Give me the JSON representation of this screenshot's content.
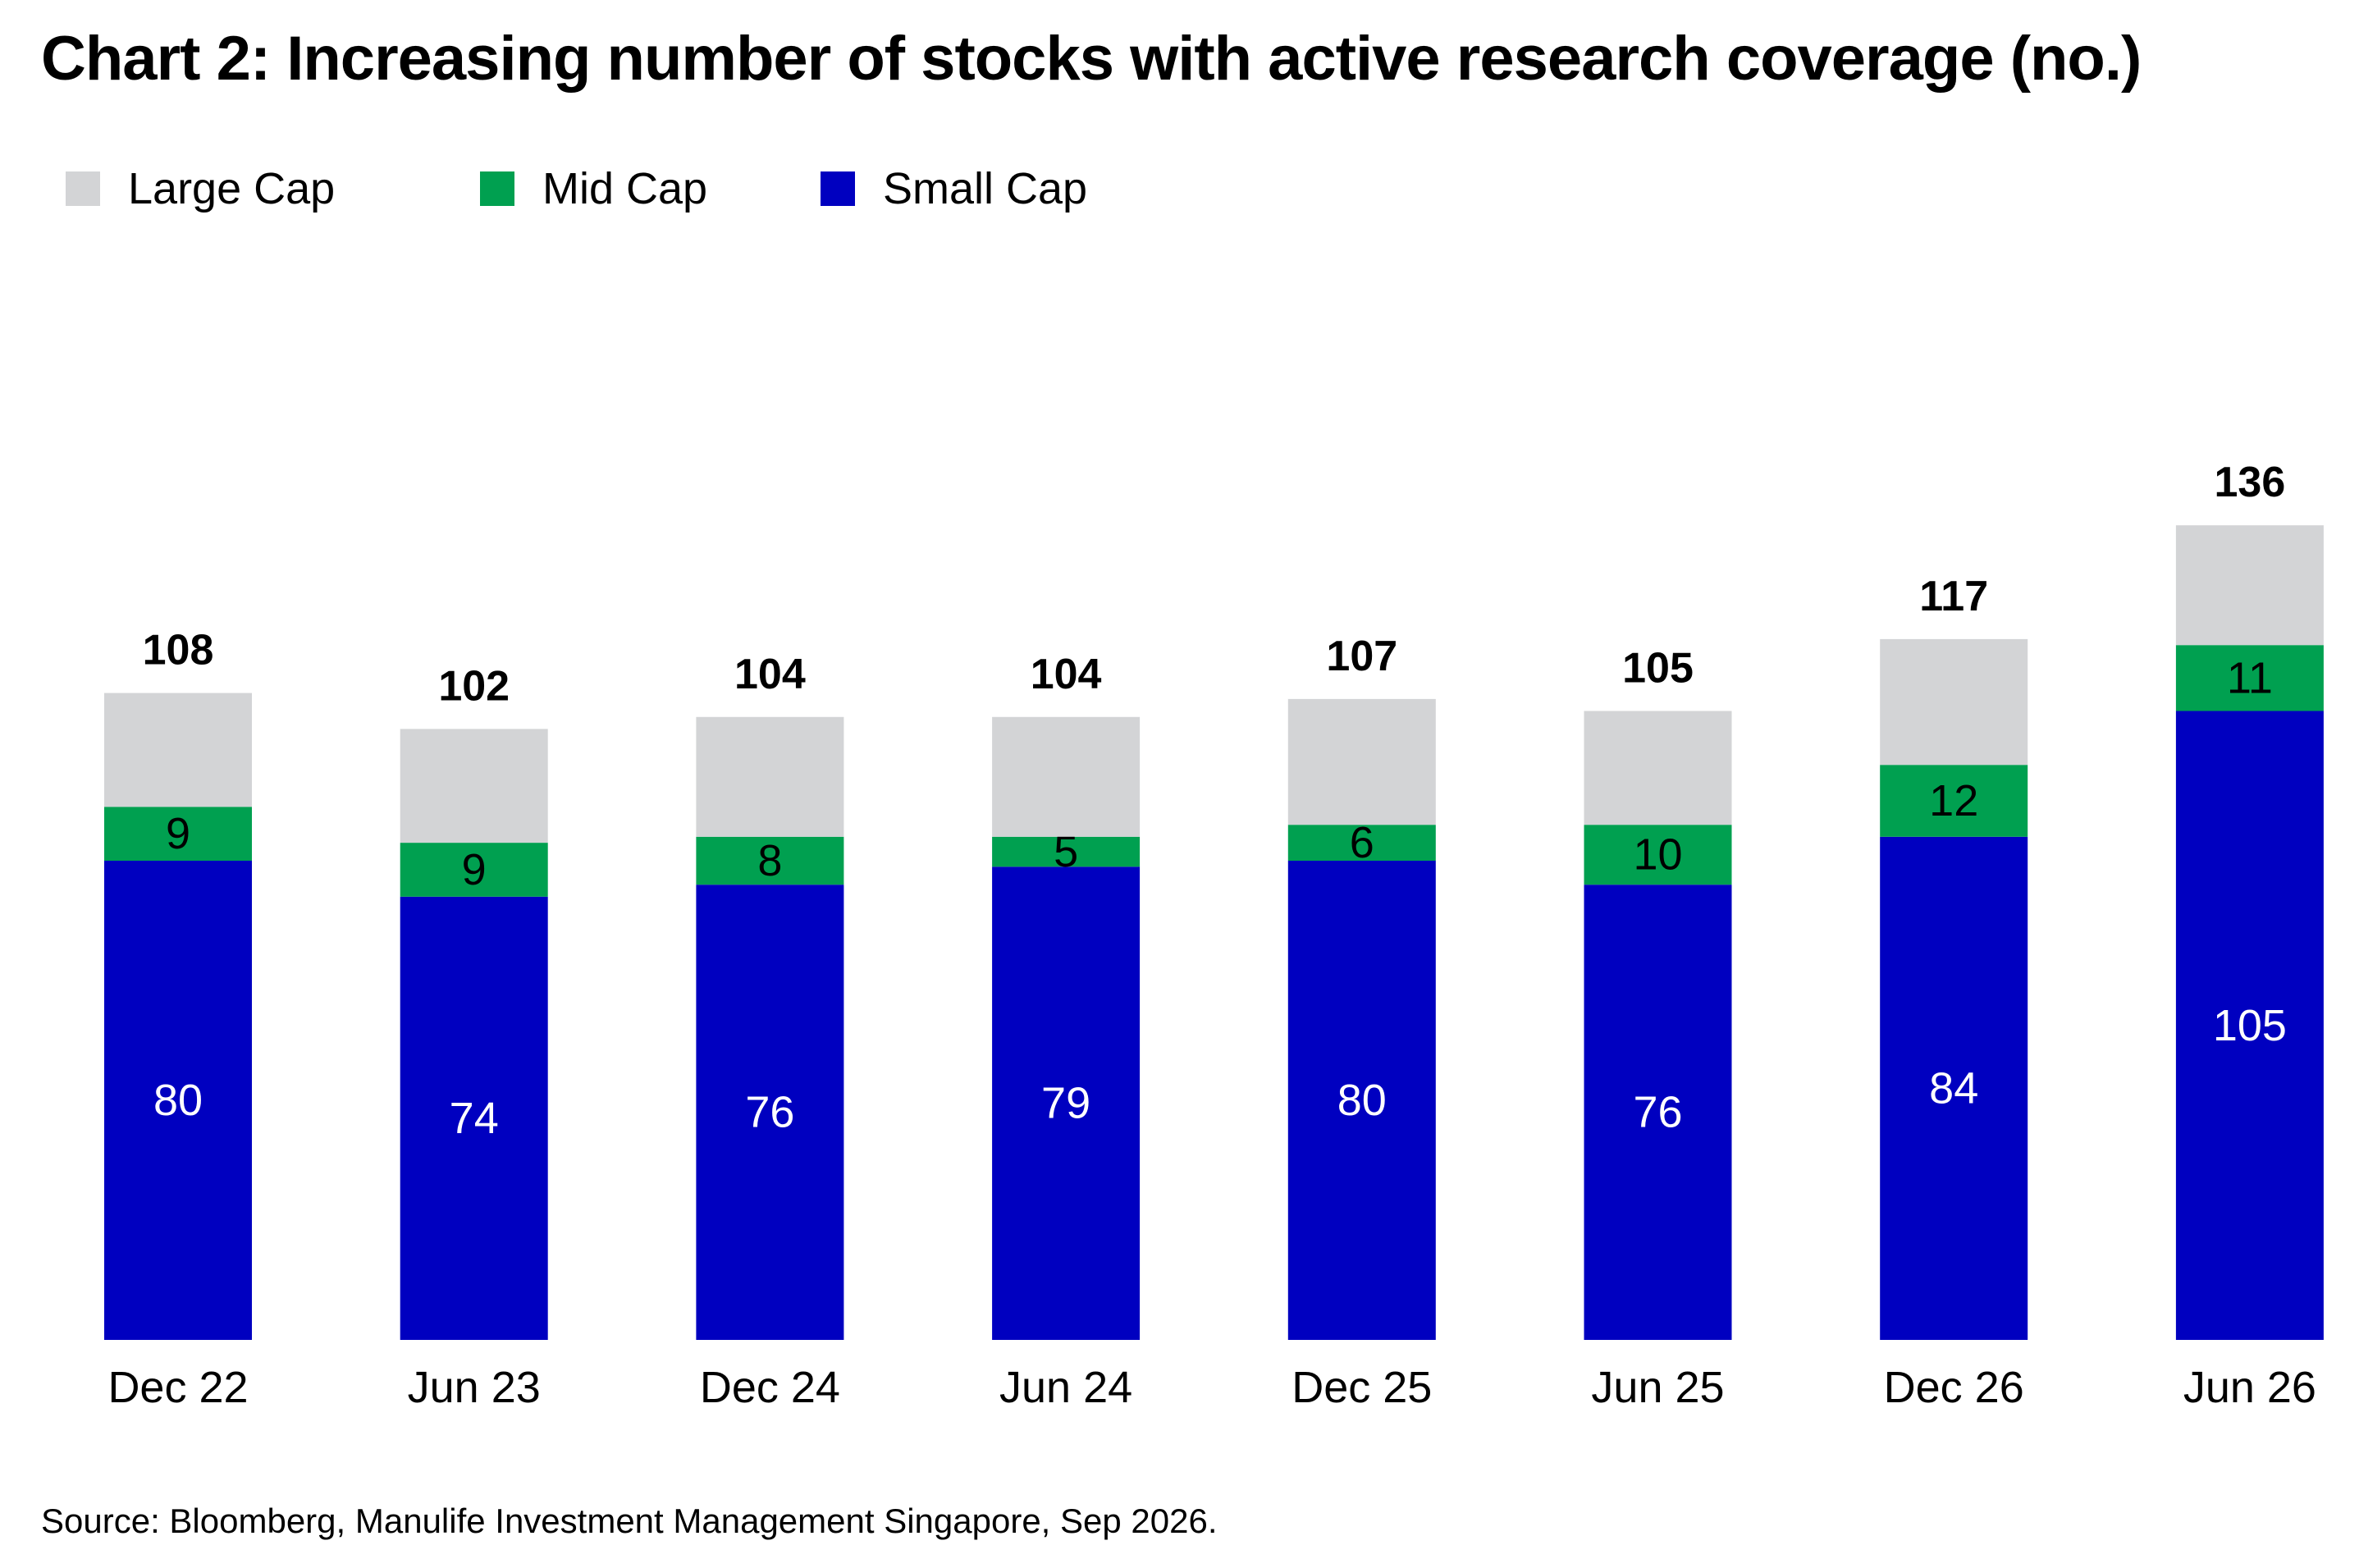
{
  "chart_data": {
    "type": "bar",
    "stacked": true,
    "title": "Chart 2: Increasing number of stocks with active research coverage (no.)",
    "categories": [
      "Dec 22",
      "Jun 23",
      "Dec 24",
      "Jun 24",
      "Dec 25",
      "Jun 25",
      "Dec 26",
      "Jun 26"
    ],
    "series": [
      {
        "name": "Small Cap",
        "values": [
          80,
          74,
          76,
          79,
          80,
          76,
          84,
          105
        ],
        "color": "#0000C0",
        "label_color": "#ffffff"
      },
      {
        "name": "Mid Cap",
        "values": [
          9,
          9,
          8,
          5,
          6,
          10,
          12,
          11
        ],
        "color": "#00A050",
        "label_color": "#000000"
      },
      {
        "name": "Large Cap",
        "values": [
          19,
          19,
          20,
          20,
          21,
          19,
          21,
          20
        ],
        "color": "#D3D4D6"
      }
    ],
    "totals": [
      108,
      102,
      104,
      104,
      107,
      105,
      117,
      136
    ],
    "legend_order": [
      "Large Cap",
      "Mid Cap",
      "Small Cap"
    ],
    "legend_position": "top-left",
    "ylim": [
      0,
      140
    ],
    "grid": false,
    "xlabel": "",
    "ylabel": ""
  },
  "source": "Source: Bloomberg, Manulife Investment Management Singapore, Sep 2026."
}
